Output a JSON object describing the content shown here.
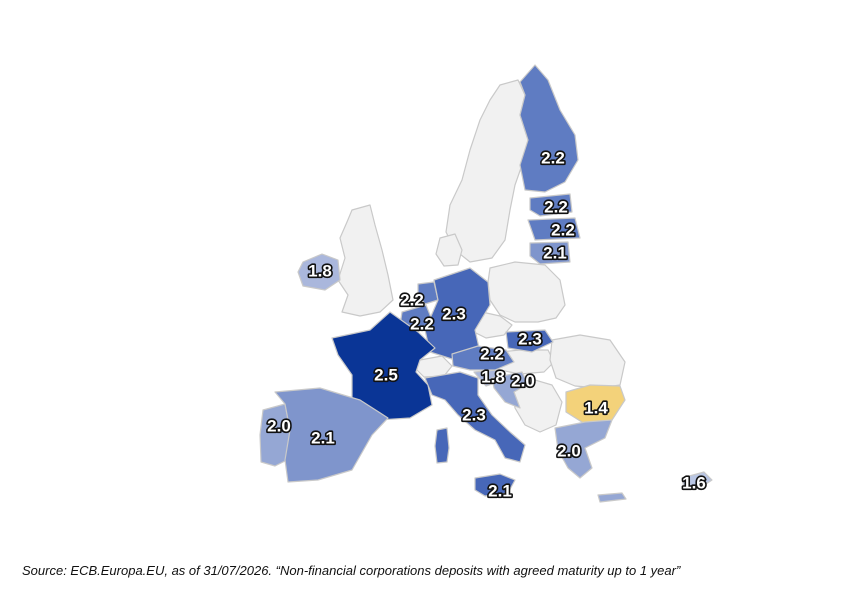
{
  "map": {
    "source_note": "Source: ECB.Europa.EU, as of 31/07/2026. “Non-financial corporations deposits with agreed maturity up to 1 year”",
    "colors": {
      "no_data": "#f1f1f1",
      "v1_4": "#f3d27a",
      "v1_6": "#b9c6e4",
      "v1_8": "#aab7dc",
      "v2_0": "#95a7d4",
      "v2_1": "#7f95cc",
      "v2_2": "#5f7cc2",
      "v2_3": "#4767b8",
      "v2_5": "#0a3596"
    },
    "regions": [
      {
        "country": "Finland",
        "value": "2.2",
        "color": "#5f7cc2"
      },
      {
        "country": "Estonia",
        "value": "2.2",
        "color": "#5f7cc2"
      },
      {
        "country": "Latvia",
        "value": "2.2",
        "color": "#5f7cc2"
      },
      {
        "country": "Lithuania",
        "value": "2.1",
        "color": "#7f95cc"
      },
      {
        "country": "Ireland",
        "value": "1.8",
        "color": "#aab7dc"
      },
      {
        "country": "Netherlands",
        "value": "2.2",
        "color": "#5f7cc2"
      },
      {
        "country": "Belgium",
        "value": "2.2",
        "color": "#5f7cc2"
      },
      {
        "country": "Germany",
        "value": "2.3",
        "color": "#4767b8"
      },
      {
        "country": "Slovakia",
        "value": "2.3",
        "color": "#4767b8"
      },
      {
        "country": "Austria",
        "value": "2.2",
        "color": "#5f7cc2"
      },
      {
        "country": "France",
        "value": "2.5",
        "color": "#0a3596"
      },
      {
        "country": "Slovenia",
        "value": "1.8",
        "color": "#aab7dc"
      },
      {
        "country": "Croatia",
        "value": "2.0",
        "color": "#95a7d4"
      },
      {
        "country": "Italy",
        "value": "2.3",
        "color": "#4767b8"
      },
      {
        "country": "Bulgaria",
        "value": "1.4",
        "color": "#f3d27a"
      },
      {
        "country": "Portugal",
        "value": "2.0",
        "color": "#95a7d4"
      },
      {
        "country": "Spain",
        "value": "2.1",
        "color": "#7f95cc"
      },
      {
        "country": "Greece",
        "value": "2.0",
        "color": "#95a7d4"
      },
      {
        "country": "Malta",
        "value": "2.1",
        "color": "#7f95cc"
      },
      {
        "country": "Cyprus",
        "value": "1.6",
        "color": "#b9c6e4"
      }
    ]
  }
}
